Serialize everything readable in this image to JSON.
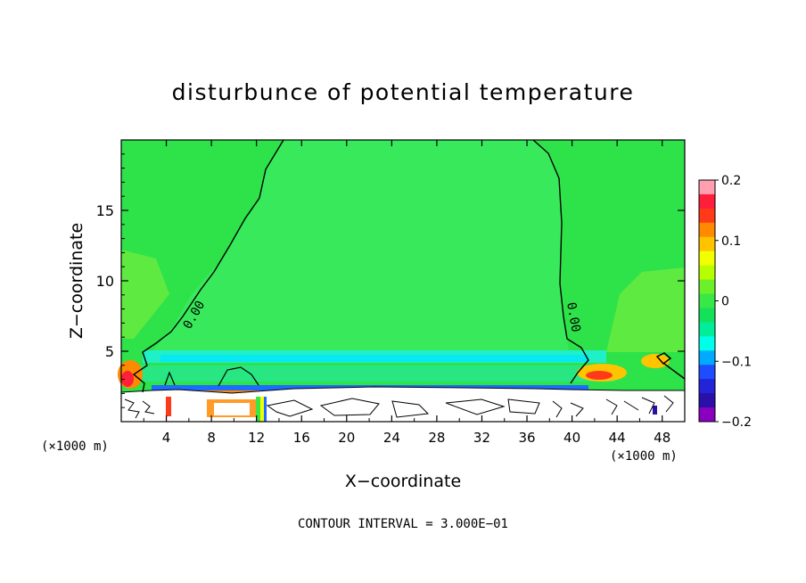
{
  "chart_data": {
    "type": "heatmap",
    "title": "disturbunce of potential temperature",
    "xlabel": "X−coordinate",
    "ylabel": "Z−coordinate",
    "x_unit_left": "(×1000 m)",
    "x_unit_right": "(×1000 m)",
    "xlim": [
      0,
      50
    ],
    "ylim": [
      0,
      20
    ],
    "x_ticks": [
      4,
      8,
      12,
      16,
      20,
      24,
      28,
      32,
      36,
      40,
      44,
      48
    ],
    "x_tick_labels": [
      "4",
      "8",
      "12",
      "16",
      "20",
      "24",
      "28",
      "32",
      "36",
      "40",
      "44",
      "48"
    ],
    "y_ticks": [
      5,
      10,
      15
    ],
    "y_tick_labels": [
      "5",
      "10",
      "15"
    ],
    "contour_labels": [
      "0.00",
      "0.00"
    ],
    "contour_interval_text": "CONTOUR INTERVAL = 3.000E−01",
    "colorbar": {
      "range": [
        -0.2,
        0.2
      ],
      "tick_values": [
        0.2,
        0.1,
        0,
        -0.1,
        -0.2
      ],
      "tick_labels": [
        "0.2",
        "0.1",
        "0",
        "−0.1",
        "−0.2"
      ],
      "colors": [
        "#ff9fb0",
        "#ff1f3a",
        "#ff3a1a",
        "#ff8a00",
        "#ffc400",
        "#f2ff00",
        "#b7ff00",
        "#6cf02a",
        "#37e846",
        "#14e05a",
        "#00ee9a",
        "#00ffe8",
        "#00aaff",
        "#1d4dff",
        "#2323d8",
        "#2a10a8",
        "#8a00c0"
      ]
    },
    "background_color": "#2ee24a",
    "upper_field_color": "#38ea5b"
  }
}
